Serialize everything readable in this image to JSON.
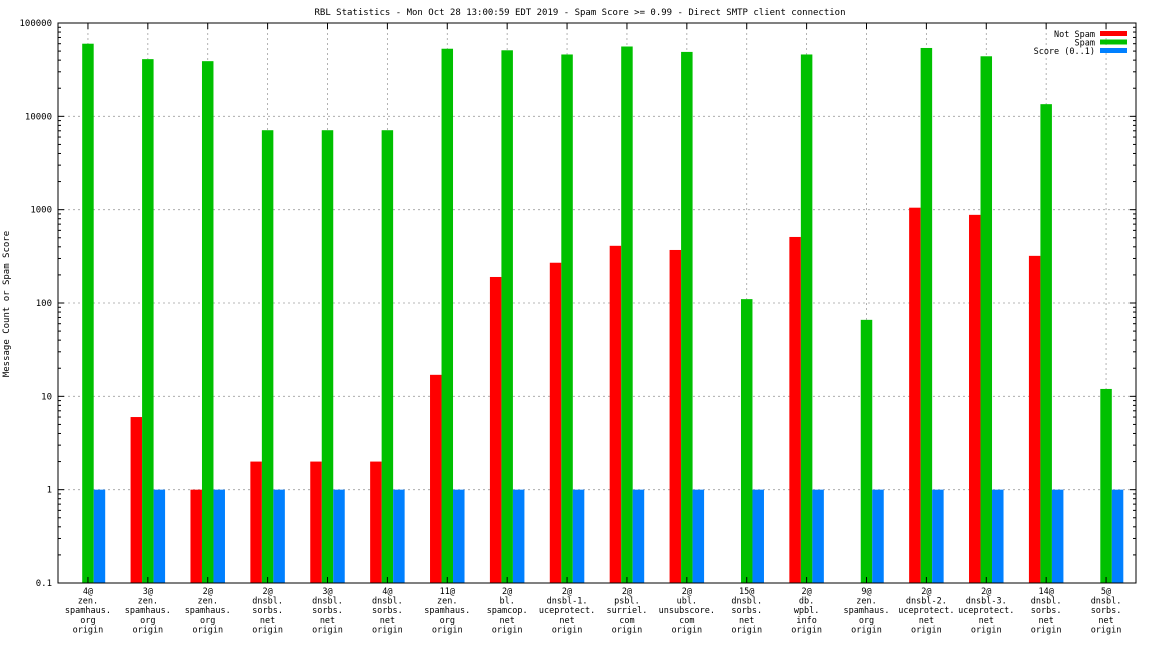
{
  "chart_data": {
    "type": "bar",
    "title": "RBL Statistics - Mon Oct 28 13:00:59 EDT 2019 - Spam Score >= 0.99 - Direct SMTP client connection",
    "xlabel": "",
    "ylabel": "Message Count or Spam Score",
    "yscale": "log",
    "ylim": [
      0.1,
      100000
    ],
    "grid": true,
    "legend_position": "top-right",
    "yticks": [
      "0.1",
      "1",
      "10",
      "100",
      "1000",
      "10000",
      "100000"
    ],
    "categories": [
      [
        "4@",
        "zen.",
        "spamhaus.",
        "org",
        "origin"
      ],
      [
        "3@",
        "zen.",
        "spamhaus.",
        "org",
        "origin"
      ],
      [
        "2@",
        "zen.",
        "spamhaus.",
        "org",
        "origin"
      ],
      [
        "2@",
        "dnsbl.",
        "sorbs.",
        "net",
        "origin"
      ],
      [
        "3@",
        "dnsbl.",
        "sorbs.",
        "net",
        "origin"
      ],
      [
        "4@",
        "dnsbl.",
        "sorbs.",
        "net",
        "origin"
      ],
      [
        "11@",
        "zen.",
        "spamhaus.",
        "org",
        "origin"
      ],
      [
        "2@",
        "bl.",
        "spamcop.",
        "net",
        "origin"
      ],
      [
        "2@",
        "dnsbl-1.",
        "uceprotect.",
        "net",
        "origin"
      ],
      [
        "2@",
        "psbl.",
        "surriel.",
        "com",
        "origin"
      ],
      [
        "2@",
        "ubl.",
        "unsubscore.",
        "com",
        "origin"
      ],
      [
        "15@",
        "dnsbl.",
        "sorbs.",
        "net",
        "origin"
      ],
      [
        "2@",
        "db.",
        "wpbl.",
        "info",
        "origin"
      ],
      [
        "9@",
        "zen.",
        "spamhaus.",
        "org",
        "origin"
      ],
      [
        "2@",
        "dnsbl-2.",
        "uceprotect.",
        "net",
        "origin"
      ],
      [
        "2@",
        "dnsbl-3.",
        "uceprotect.",
        "net",
        "origin"
      ],
      [
        "14@",
        "dnsbl.",
        "sorbs.",
        "net",
        "origin"
      ],
      [
        "5@",
        "dnsbl.",
        "sorbs.",
        "net",
        "origin"
      ]
    ],
    "series": [
      {
        "name": "Not Spam",
        "color": "#ff0000",
        "values": [
          null,
          6,
          1,
          2,
          2,
          2,
          17,
          190,
          270,
          410,
          370,
          null,
          510,
          null,
          1050,
          880,
          320,
          null
        ]
      },
      {
        "name": "Spam",
        "color": "#00c000",
        "values": [
          60000,
          41000,
          39000,
          7100,
          7100,
          7100,
          53000,
          51000,
          46000,
          56000,
          49000,
          110,
          46000,
          66,
          54000,
          44000,
          13500,
          12
        ]
      },
      {
        "name": "Score (0..1)",
        "color": "#0080ff",
        "values": [
          1,
          1,
          1,
          1,
          1,
          1,
          1,
          1,
          1,
          1,
          1,
          1,
          1,
          1,
          1,
          1,
          1,
          1
        ]
      }
    ]
  }
}
